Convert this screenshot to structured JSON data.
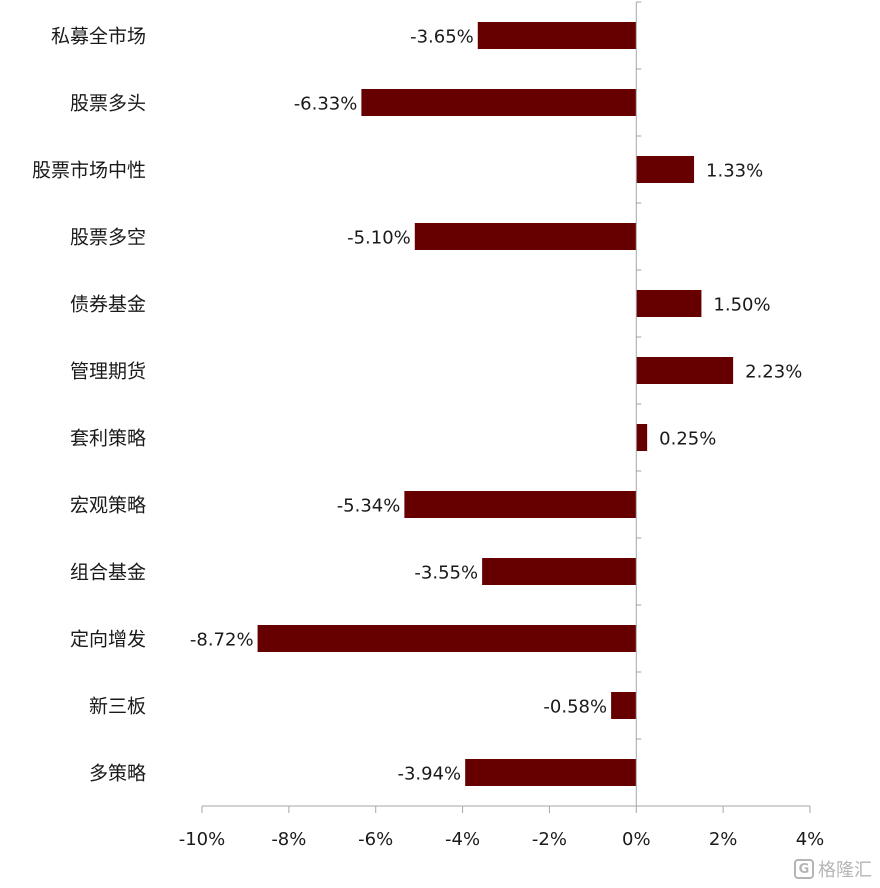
{
  "chart_data": {
    "type": "bar",
    "orientation": "horizontal",
    "categories": [
      "私募全市场",
      "股票多头",
      "股票市场中性",
      "股票多空",
      "债券基金",
      "管理期货",
      "套利策略",
      "宏观策略",
      "组合基金",
      "定向增发",
      "新三板",
      "多策略"
    ],
    "values": [
      -3.65,
      -6.33,
      1.33,
      -5.1,
      1.5,
      2.23,
      0.25,
      -5.34,
      -3.55,
      -8.72,
      -0.58,
      -3.94
    ],
    "value_labels": [
      "-3.65%",
      "-6.33%",
      "1.33%",
      "-5.10%",
      "1.50%",
      "2.23%",
      "0.25%",
      "-5.34%",
      "-3.55%",
      "-8.72%",
      "-0.58%",
      "-3.94%"
    ],
    "xlim": [
      -10,
      4
    ],
    "xticks": [
      -10,
      -8,
      -6,
      -4,
      -2,
      0,
      2,
      4
    ],
    "xtick_labels": [
      "-10%",
      "-8%",
      "-6%",
      "-4%",
      "-2%",
      "0%",
      "2%",
      "4%"
    ],
    "bar_color": "#660000",
    "axis_color": "#a6a6a6",
    "grid": false,
    "legend": "none"
  },
  "watermark": {
    "logo_glyph": "G",
    "text": "格隆汇"
  }
}
